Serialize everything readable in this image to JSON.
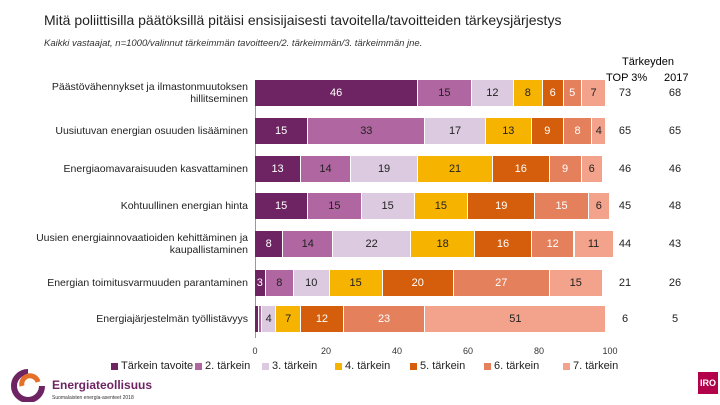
{
  "chart_data": {
    "type": "bar",
    "orientation": "horizontal",
    "stacked": true,
    "title": "Mitä poliittisilla päätöksillä pitäisi ensisijaisesti tavoitella/tavoitteiden tärkeysjärjestys",
    "subtitle": "Kaikki vastaajat, n=1000/valinnut tärkeimmän tavoitteen/2. tärkeimmän/3. tärkeimmän jne.",
    "categories": [
      "Päästövähennykset ja ilmastonmuutoksen hillitseminen",
      "Uusiutuvan energian osuuden lisääminen",
      "Energiaomavaraisuuden kasvattaminen",
      "Kohtuullinen energian hinta",
      "Uusien energiainnovaatioiden kehittäminen ja kaupallistaminen",
      "Energian toimitusvarmuuden parantaminen",
      "Energiajärjestelmän työllistävyys"
    ],
    "series": [
      {
        "name": "Tärkein tavoite",
        "color": "#6e2462",
        "values": [
          46,
          15,
          13,
          15,
          8,
          3,
          1
        ]
      },
      {
        "name": "2. tärkein",
        "color": "#b066a0",
        "values": [
          15,
          33,
          14,
          15,
          14,
          8,
          1
        ]
      },
      {
        "name": "3. tärkein",
        "color": "#dccbe0",
        "values": [
          12,
          17,
          19,
          15,
          22,
          10,
          4
        ]
      },
      {
        "name": "4. tärkein",
        "color": "#f6b400",
        "values": [
          8,
          13,
          21,
          15,
          18,
          15,
          7
        ]
      },
      {
        "name": "5. tärkein",
        "color": "#d45e0c",
        "values": [
          6,
          9,
          16,
          19,
          16,
          20,
          12
        ]
      },
      {
        "name": "6. tärkein",
        "color": "#e5805c",
        "values": [
          5,
          8,
          9,
          15,
          12,
          27,
          23
        ]
      },
      {
        "name": "7. tärkein",
        "color": "#f3a28c",
        "values": [
          7,
          4,
          6,
          6,
          11,
          15,
          51
        ]
      }
    ],
    "xlim": [
      0,
      100
    ],
    "xticks": [
      0,
      20,
      40,
      60,
      80,
      100
    ],
    "side_table": {
      "header": "Tärkeyden",
      "col1": "TOP 3%",
      "col2": "2017",
      "top3": [
        73,
        65,
        46,
        45,
        44,
        21,
        6
      ],
      "y2017": [
        68,
        65,
        46,
        48,
        43,
        26,
        5
      ]
    },
    "legend_position": "bottom"
  },
  "logos": {
    "left": "Energiateollisuus",
    "left_sub": "Suomalaisten energia-asenteet 2018",
    "right": "IRO"
  }
}
